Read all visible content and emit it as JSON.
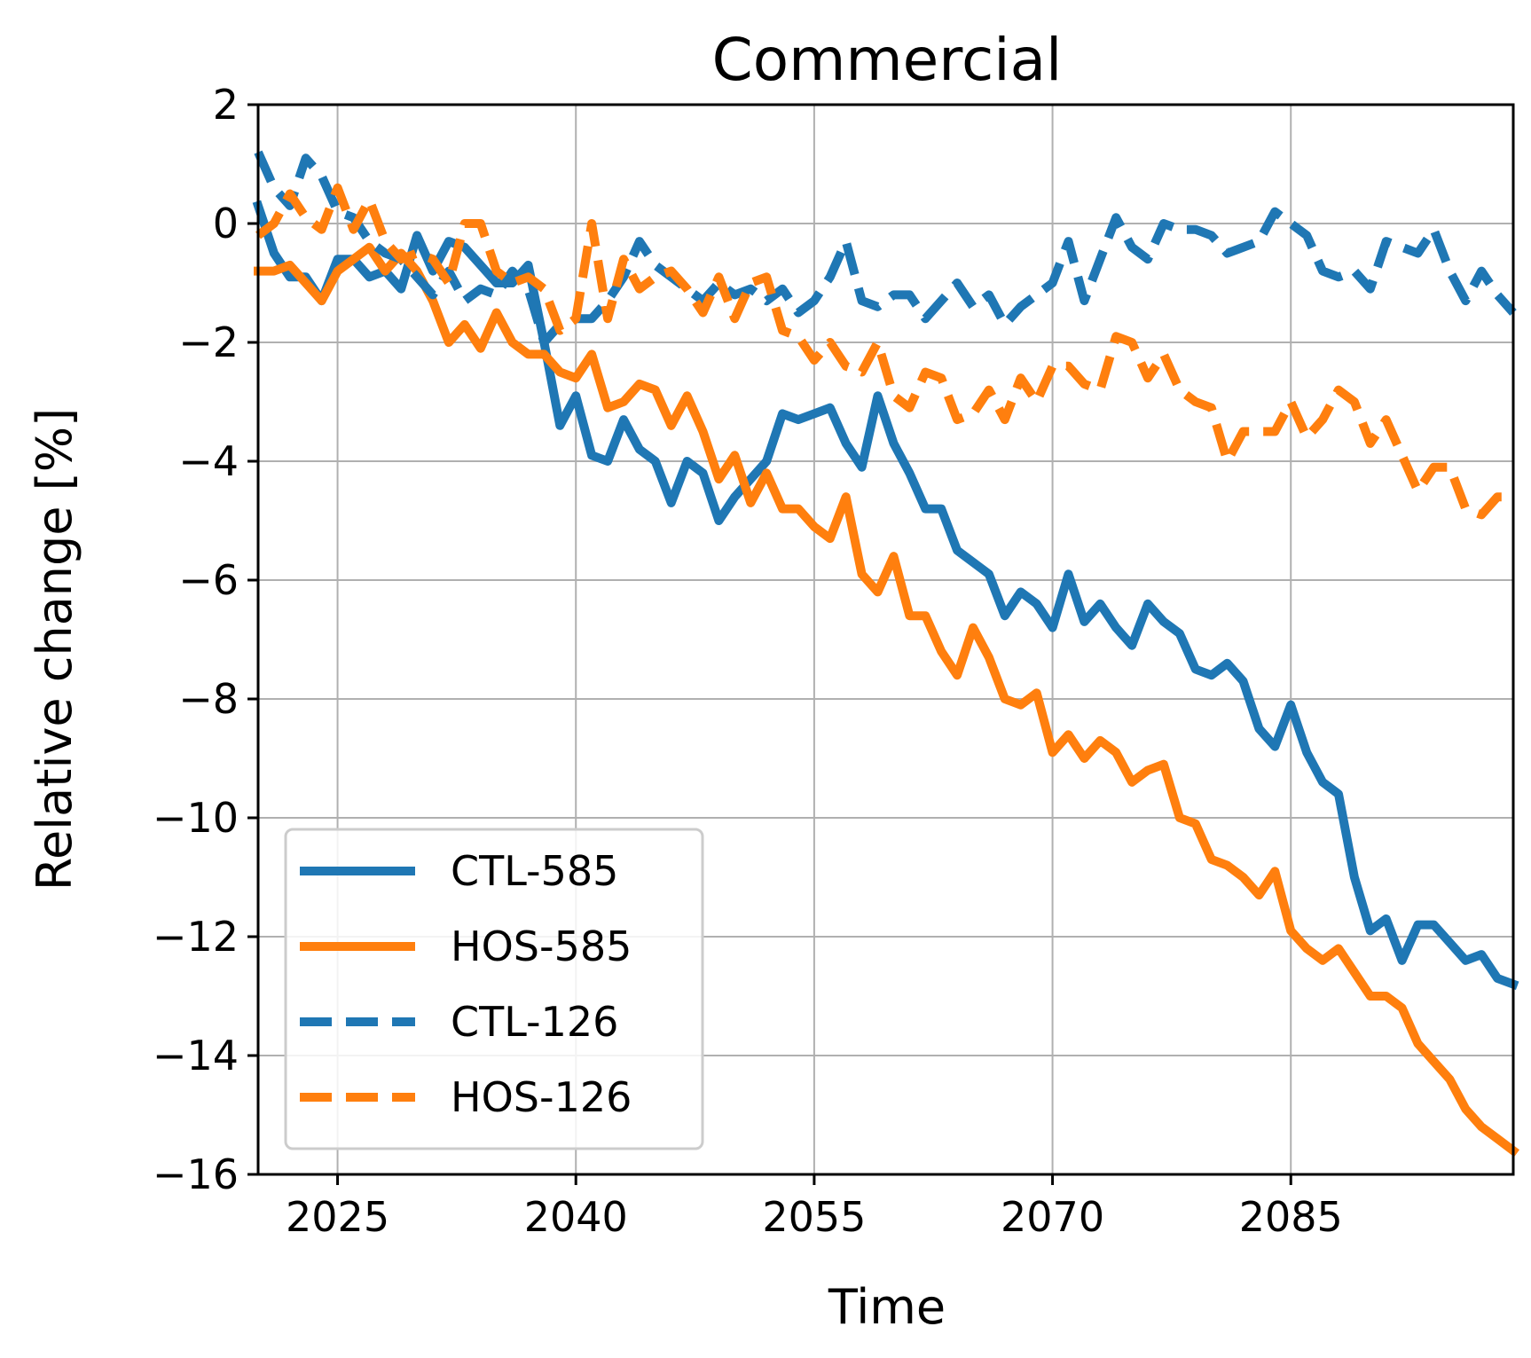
{
  "chart_data": {
    "type": "line",
    "title": "Commercial",
    "xlabel": "Time",
    "ylabel": "Relative change [%]",
    "xlim": [
      2020,
      2099
    ],
    "ylim": [
      -16,
      2
    ],
    "xticks": [
      2025,
      2040,
      2055,
      2070,
      2085
    ],
    "xtick_labels": [
      "2025",
      "2040",
      "2055",
      "2070",
      "2085"
    ],
    "yticks": [
      2,
      0,
      -2,
      -4,
      -6,
      -8,
      -10,
      -12,
      -14,
      -16
    ],
    "ytick_labels": [
      "2",
      "0",
      "−2",
      "−4",
      "−6",
      "−8",
      "−10",
      "−12",
      "−14",
      "−16"
    ],
    "grid": true,
    "legend_position": "lower-left",
    "colors": {
      "blue": "#1f77b4",
      "orange": "#ff7f0e"
    },
    "x": [
      2020,
      2021,
      2022,
      2023,
      2024,
      2025,
      2026,
      2027,
      2028,
      2029,
      2030,
      2031,
      2032,
      2033,
      2034,
      2035,
      2036,
      2037,
      2038,
      2039,
      2040,
      2041,
      2042,
      2043,
      2044,
      2045,
      2046,
      2047,
      2048,
      2049,
      2050,
      2051,
      2052,
      2053,
      2054,
      2055,
      2056,
      2057,
      2058,
      2059,
      2060,
      2061,
      2062,
      2063,
      2064,
      2065,
      2066,
      2067,
      2068,
      2069,
      2070,
      2071,
      2072,
      2073,
      2074,
      2075,
      2076,
      2077,
      2078,
      2079,
      2080,
      2081,
      2082,
      2083,
      2084,
      2085,
      2086,
      2087,
      2088,
      2089,
      2090,
      2091,
      2092,
      2093,
      2094,
      2095,
      2096,
      2097,
      2098,
      2099
    ],
    "series": [
      {
        "name": "CTL-585",
        "color": "#1f77b4",
        "dash": "solid",
        "values": [
          0.3,
          -0.5,
          -0.9,
          -0.9,
          -1.3,
          -0.6,
          -0.6,
          -0.9,
          -0.8,
          -1.1,
          -0.2,
          -0.8,
          -0.3,
          -0.4,
          -0.7,
          -1.0,
          -1.0,
          -0.7,
          -2.0,
          -3.4,
          -2.9,
          -3.9,
          -4.0,
          -3.3,
          -3.8,
          -4.0,
          -4.7,
          -4.0,
          -4.2,
          -5.0,
          -4.6,
          -4.3,
          -4.0,
          -3.2,
          -3.3,
          -3.2,
          -3.1,
          -3.7,
          -4.1,
          -2.9,
          -3.7,
          -4.2,
          -4.8,
          -4.8,
          -5.5,
          -5.7,
          -5.9,
          -6.6,
          -6.2,
          -6.4,
          -6.8,
          -5.9,
          -6.7,
          -6.4,
          -6.8,
          -7.1,
          -6.4,
          -6.7,
          -6.9,
          -7.5,
          -7.6,
          -7.4,
          -7.7,
          -8.5,
          -8.8,
          -8.1,
          -8.9,
          -9.4,
          -9.6,
          -11.0,
          -11.9,
          -11.7,
          -12.4,
          -11.8,
          -11.8,
          -12.1,
          -12.4,
          -12.3,
          -12.7,
          -12.8
        ]
      },
      {
        "name": "HOS-585",
        "color": "#ff7f0e",
        "dash": "solid",
        "values": [
          -0.8,
          -0.8,
          -0.7,
          -1.0,
          -1.3,
          -0.8,
          -0.6,
          -0.4,
          -0.8,
          -0.5,
          -0.8,
          -1.3,
          -2.0,
          -1.7,
          -2.1,
          -1.5,
          -2.0,
          -2.2,
          -2.2,
          -2.5,
          -2.6,
          -2.2,
          -3.1,
          -3.0,
          -2.7,
          -2.8,
          -3.4,
          -2.9,
          -3.5,
          -4.3,
          -3.9,
          -4.7,
          -4.2,
          -4.8,
          -4.8,
          -5.1,
          -5.3,
          -4.6,
          -5.9,
          -6.2,
          -5.6,
          -6.6,
          -6.6,
          -7.2,
          -7.6,
          -6.8,
          -7.3,
          -8.0,
          -8.1,
          -7.9,
          -8.9,
          -8.6,
          -9.0,
          -8.7,
          -8.9,
          -9.4,
          -9.2,
          -9.1,
          -10.0,
          -10.1,
          -10.7,
          -10.8,
          -11.0,
          -11.3,
          -10.9,
          -11.9,
          -12.2,
          -12.4,
          -12.2,
          -12.6,
          -13.0,
          -13.0,
          -13.2,
          -13.8,
          -14.1,
          -14.4,
          -14.9,
          -15.2,
          -15.4,
          -15.6
        ]
      },
      {
        "name": "CTL-126",
        "color": "#1f77b4",
        "dash": "dashed",
        "values": [
          1.2,
          0.6,
          0.3,
          1.1,
          0.8,
          0.2,
          0.1,
          -0.3,
          -0.5,
          -0.6,
          -0.9,
          -1.2,
          -0.8,
          -1.3,
          -1.1,
          -1.2,
          -0.8,
          -1.1,
          -2.0,
          -1.7,
          -1.6,
          -1.6,
          -1.3,
          -0.9,
          -0.3,
          -0.7,
          -0.9,
          -1.1,
          -1.3,
          -1.0,
          -1.2,
          -1.1,
          -1.3,
          -1.1,
          -1.5,
          -1.3,
          -0.9,
          -0.3,
          -1.3,
          -1.4,
          -1.2,
          -1.2,
          -1.6,
          -1.3,
          -1.0,
          -1.4,
          -1.2,
          -1.7,
          -1.4,
          -1.2,
          -1.0,
          -0.3,
          -1.3,
          -0.6,
          0.1,
          -0.4,
          -0.6,
          0.0,
          -0.1,
          -0.1,
          -0.2,
          -0.5,
          -0.4,
          -0.3,
          0.2,
          0.0,
          -0.2,
          -0.8,
          -0.9,
          -0.8,
          -1.1,
          -0.3,
          -0.4,
          -0.5,
          -0.1,
          -0.8,
          -1.3,
          -0.8,
          -1.2,
          -1.5
        ]
      },
      {
        "name": "HOS-126",
        "color": "#ff7f0e",
        "dash": "dashed",
        "values": [
          -0.2,
          0.0,
          0.5,
          0.1,
          -0.1,
          0.6,
          -0.1,
          0.4,
          -0.3,
          -0.6,
          -0.5,
          -0.6,
          -1.0,
          0.0,
          0.0,
          -0.8,
          -1.0,
          -0.9,
          -1.1,
          -1.8,
          -1.6,
          0.0,
          -1.6,
          -0.6,
          -1.1,
          -0.9,
          -0.8,
          -1.1,
          -1.5,
          -0.9,
          -1.6,
          -1.0,
          -0.9,
          -1.8,
          -1.9,
          -2.3,
          -2.0,
          -2.4,
          -2.5,
          -2.0,
          -2.9,
          -3.1,
          -2.5,
          -2.6,
          -3.3,
          -3.2,
          -2.8,
          -3.3,
          -2.6,
          -3.0,
          -2.4,
          -2.4,
          -2.7,
          -2.8,
          -1.9,
          -2.0,
          -2.6,
          -2.2,
          -2.8,
          -3.0,
          -3.1,
          -4.0,
          -3.5,
          -3.5,
          -3.5,
          -3.0,
          -3.6,
          -3.3,
          -2.8,
          -3.0,
          -3.7,
          -3.3,
          -3.9,
          -4.5,
          -4.1,
          -4.1,
          -4.8,
          -4.9,
          -4.6,
          -4.6
        ]
      }
    ]
  }
}
